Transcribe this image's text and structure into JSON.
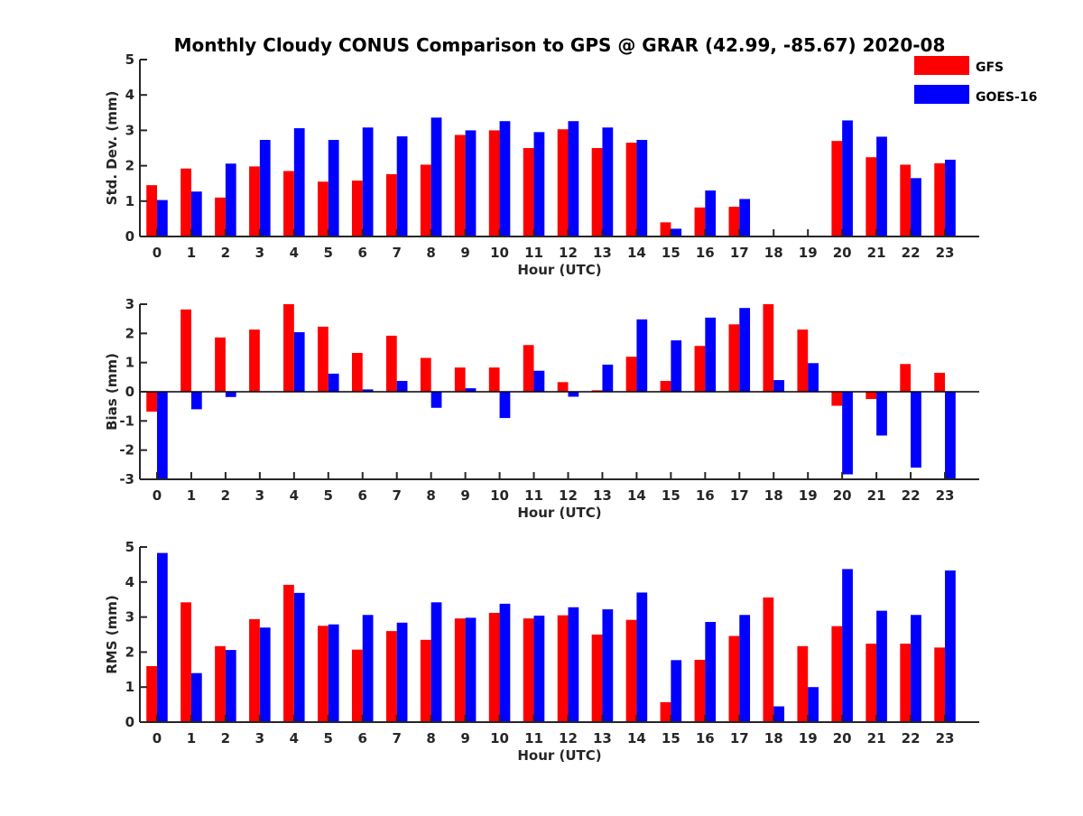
{
  "chart_data": {
    "type": "bar",
    "title": "Monthly Cloudy CONUS Comparison to GPS @ GRAR (42.99, -85.67) 2020-08",
    "legend": {
      "placement": "top-right",
      "entries": [
        "GFS",
        "GOES-16"
      ]
    },
    "colors": {
      "GFS": "#ff0000",
      "GOES-16": "#0000ff"
    },
    "categories": [
      "0",
      "1",
      "2",
      "3",
      "4",
      "5",
      "6",
      "7",
      "8",
      "9",
      "10",
      "11",
      "12",
      "13",
      "14",
      "15",
      "16",
      "17",
      "18",
      "19",
      "20",
      "21",
      "22",
      "23"
    ],
    "panels": [
      {
        "ylabel": "Std. Dev. (mm)",
        "xlabel": "Hour (UTC)",
        "ylim": [
          0,
          5
        ],
        "yticks": [
          "0",
          "1",
          "2",
          "3",
          "4",
          "5"
        ],
        "series": [
          {
            "name": "GFS",
            "values": [
              1.45,
              1.92,
              1.1,
              1.98,
              1.85,
              1.55,
              1.58,
              1.76,
              2.03,
              2.87,
              3.0,
              2.5,
              3.03,
              2.5,
              2.65,
              0.4,
              0.82,
              0.84,
              0,
              0,
              2.7,
              2.24,
              2.03,
              2.07
            ]
          },
          {
            "name": "GOES-16",
            "values": [
              1.03,
              1.27,
              2.06,
              2.73,
              3.06,
              2.73,
              3.08,
              2.83,
              3.36,
              3.0,
              3.26,
              2.95,
              3.26,
              3.08,
              2.73,
              0.22,
              1.3,
              1.06,
              0,
              0,
              3.28,
              2.82,
              1.65,
              2.17
            ]
          }
        ]
      },
      {
        "ylabel": "Bias (mm)",
        "xlabel": "Hour (UTC)",
        "ylim": [
          -3,
          3
        ],
        "yticks": [
          "-3",
          "-2",
          "-1",
          "0",
          "1",
          "2",
          "3"
        ],
        "series": [
          {
            "name": "GFS",
            "values": [
              -0.68,
              2.82,
              1.86,
              2.13,
              3.0,
              2.23,
              1.33,
              1.92,
              1.16,
              0.83,
              0.83,
              1.6,
              0.33,
              0.05,
              1.2,
              0.37,
              1.57,
              2.31,
              3.0,
              2.13,
              -0.48,
              -0.25,
              0.95,
              0.65
            ]
          },
          {
            "name": "GOES-16",
            "values": [
              -3.0,
              -0.6,
              -0.18,
              0,
              2.04,
              0.62,
              0.08,
              0.37,
              -0.55,
              0.12,
              -0.9,
              0.72,
              -0.17,
              0.93,
              2.48,
              1.76,
              2.54,
              2.87,
              0.4,
              0.98,
              -2.83,
              -1.5,
              -2.6,
              -3.0
            ]
          }
        ]
      },
      {
        "ylabel": "RMS (mm)",
        "xlabel": "Hour (UTC)",
        "ylim": [
          0,
          5
        ],
        "yticks": [
          "0",
          "1",
          "2",
          "3",
          "4",
          "5"
        ],
        "series": [
          {
            "name": "GFS",
            "values": [
              1.6,
              3.42,
              2.17,
              2.94,
              3.92,
              2.75,
              2.07,
              2.6,
              2.35,
              2.96,
              3.12,
              2.96,
              3.05,
              2.5,
              2.92,
              0.57,
              1.78,
              2.46,
              3.56,
              2.17,
              2.74,
              2.24,
              2.24,
              2.13
            ]
          },
          {
            "name": "GOES-16",
            "values": [
              4.83,
              1.4,
              2.06,
              2.7,
              3.69,
              2.79,
              3.06,
              2.84,
              3.42,
              2.98,
              3.38,
              3.04,
              3.28,
              3.22,
              3.7,
              1.77,
              2.86,
              3.06,
              0.45,
              1.0,
              4.37,
              3.18,
              3.06,
              4.33
            ]
          }
        ]
      }
    ]
  }
}
